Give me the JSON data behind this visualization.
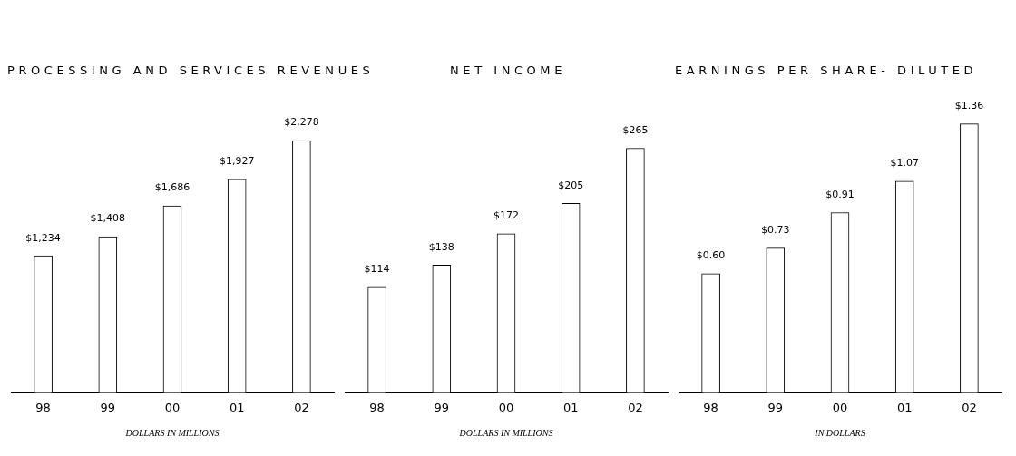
{
  "chart_data": [
    {
      "type": "bar",
      "title": "PROCESSING AND SERVICES REVENUES",
      "xlabel": "DOLLARS IN MILLIONS",
      "categories": [
        "98",
        "99",
        "00",
        "01",
        "02"
      ],
      "values": [
        1234,
        1408,
        1686,
        1927,
        2278
      ],
      "value_labels": [
        "$1,234",
        "$1,408",
        "$1,686",
        "$1,927",
        "$2,278"
      ],
      "color": "#ffffff",
      "grid": false,
      "legend": false
    },
    {
      "type": "bar",
      "title": "NET INCOME",
      "xlabel": "DOLLARS IN MILLIONS",
      "categories": [
        "98",
        "99",
        "00",
        "01",
        "02"
      ],
      "values": [
        114,
        138,
        172,
        205,
        265
      ],
      "value_labels": [
        "$114",
        "$138",
        "$172",
        "$205",
        "$265"
      ],
      "color": "#ffffff",
      "grid": false,
      "legend": false
    },
    {
      "type": "bar",
      "title": "EARNINGS PER SHARE- DILUTED",
      "xlabel": "IN DOLLARS",
      "categories": [
        "98",
        "99",
        "00",
        "01",
        "02"
      ],
      "values": [
        0.6,
        0.73,
        0.91,
        1.07,
        1.36
      ],
      "value_labels": [
        "$0.60",
        "$0.73",
        "$0.91",
        "$1.07",
        "$1.36"
      ],
      "color": "#ffffff",
      "grid": false,
      "legend": false
    }
  ]
}
